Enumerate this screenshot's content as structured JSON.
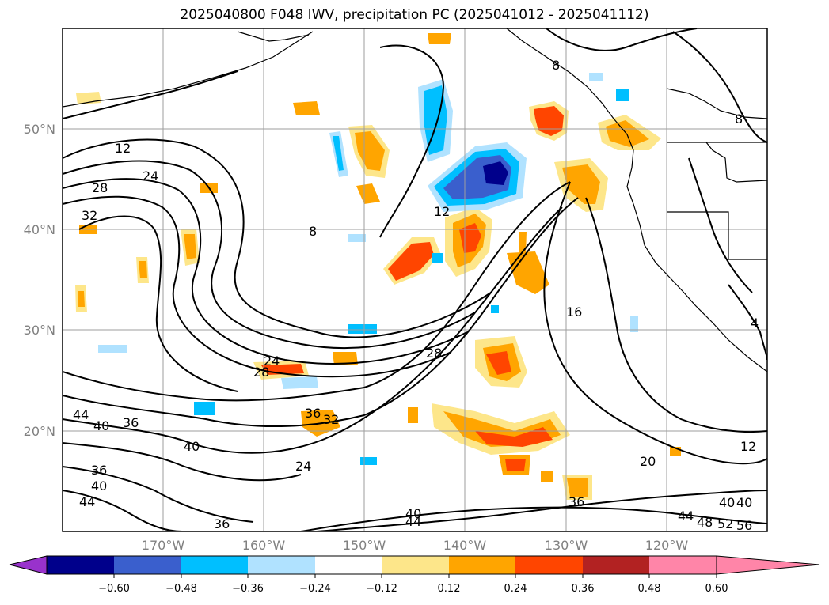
{
  "title": "2025040800 F048 IWV, precipitation PC (2025041012 - 2025041112)",
  "map": {
    "lat_ticks": [
      "50°N",
      "40°N",
      "30°N",
      "20°N"
    ],
    "lon_ticks": [
      "170°W",
      "160°W",
      "150°W",
      "140°W",
      "130°W",
      "120°W"
    ],
    "contour_labels": [
      "12",
      "24",
      "28",
      "32",
      "8",
      "12",
      "16",
      "28",
      "24",
      "28",
      "36",
      "32",
      "44",
      "40",
      "36",
      "40",
      "36",
      "40",
      "44",
      "36",
      "24",
      "20",
      "40",
      "40",
      "44",
      "36",
      "12",
      "40",
      "44",
      "48",
      "52",
      "56",
      "8",
      "8",
      "4"
    ]
  },
  "colorbar": {
    "ticks": [
      "−0.60",
      "−0.48",
      "−0.36",
      "−0.24",
      "−0.12",
      "0.12",
      "0.24",
      "0.36",
      "0.48",
      "0.60"
    ],
    "colors": [
      "#9932cc",
      "#00008b",
      "#3a5fcd",
      "#00bfff",
      "#b0e2ff",
      "#ffffff",
      "#fde68a",
      "#ffa500",
      "#ff4500",
      "#b22222",
      "#ff85a8"
    ]
  }
}
